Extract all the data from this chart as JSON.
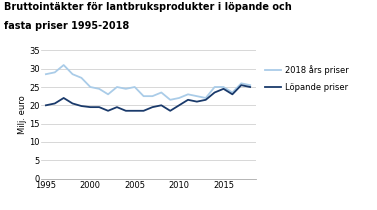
{
  "title_line1": "Bruttointäkter för lantbruksprodukter i löpande och",
  "title_line2": "fasta priser 1995-2018",
  "ylabel": "Milj. euro",
  "years": [
    1995,
    1996,
    1997,
    1998,
    1999,
    2000,
    2001,
    2002,
    2003,
    2004,
    2005,
    2006,
    2007,
    2008,
    2009,
    2010,
    2011,
    2012,
    2013,
    2014,
    2015,
    2016,
    2017,
    2018
  ],
  "fixed_prices": [
    28.5,
    29.0,
    31.0,
    28.5,
    27.5,
    25.0,
    24.5,
    23.0,
    25.0,
    24.5,
    25.0,
    22.5,
    22.5,
    23.5,
    21.5,
    22.0,
    23.0,
    22.5,
    22.0,
    25.0,
    25.0,
    23.5,
    26.0,
    25.5
  ],
  "current_prices": [
    20.0,
    20.5,
    22.0,
    20.5,
    19.8,
    19.5,
    19.5,
    18.5,
    19.5,
    18.5,
    18.5,
    18.5,
    19.5,
    20.0,
    18.5,
    20.0,
    21.5,
    21.0,
    21.5,
    23.5,
    24.5,
    23.0,
    25.5,
    25.0
  ],
  "fixed_color": "#aacce8",
  "current_color": "#1a3a6b",
  "legend_fixed": "2018 års priser",
  "legend_current": "Löpande priser",
  "ylim": [
    0,
    35
  ],
  "yticks": [
    0,
    5,
    10,
    15,
    20,
    25,
    30,
    35
  ],
  "xticks": [
    1995,
    2000,
    2005,
    2010,
    2015
  ],
  "xlim_left": 1994.5,
  "xlim_right": 2018.7,
  "grid_color": "#c8c8c8",
  "bg_color": "#ffffff"
}
